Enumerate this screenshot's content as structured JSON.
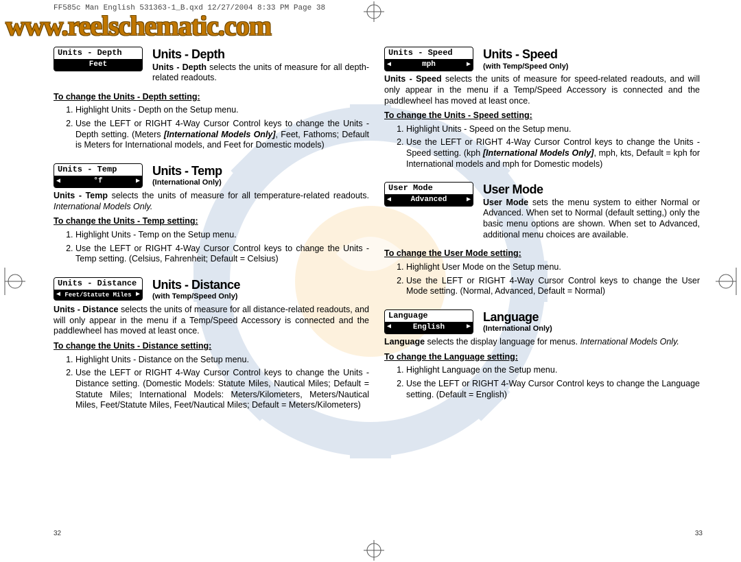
{
  "header_line": "FF585c Man English 531363-1_B.qxd  12/27/2004  8:33 PM  Page 38",
  "watermark_url": "www.reelschematic.com",
  "page_num_left": "32",
  "page_num_right": "33",
  "watermark_colors": {
    "gear_outer": "#2a5d9e",
    "gear_center": "#f5a623",
    "accent": "#e8e8e8"
  },
  "sections_left": [
    {
      "widget": {
        "title": "Units - Depth",
        "value": "Feet",
        "arrows": false
      },
      "title": "Units - Depth",
      "subtitle": "",
      "intro_html": "<b>Units - Depth</b> selects the units of measure for all depth-related readouts.",
      "intro_inline": true,
      "change_heading": "To change the Units - Depth setting:",
      "steps": [
        "Highlight Units - Depth on the Setup menu.",
        "Use the LEFT or RIGHT 4-Way Cursor Control keys to change the Units - Depth setting. (Meters <span class='boldi'>[International Models Only]</span>, Feet, Fathoms; Default is Meters for International models, and Feet for Domestic models)"
      ]
    },
    {
      "widget": {
        "title": "Units - Temp",
        "value": "°f",
        "arrows": true
      },
      "title": "Units - Temp",
      "subtitle": "(International Only)",
      "intro_html": "<b>Units - Temp</b> selects the units of measure for all temperature-related readouts. <i>International Models Only.</i>",
      "intro_inline": false,
      "change_heading": "To change the Units - Temp setting:",
      "steps": [
        "Highlight Units - Temp on the Setup menu.",
        "Use the LEFT or RIGHT 4-Way Cursor Control keys to change the Units - Temp setting. (Celsius, Fahrenheit; Default = Celsius)"
      ]
    },
    {
      "widget": {
        "title": "Units - Distance",
        "value": "Feet/Statute Miles",
        "arrows": true,
        "small": true
      },
      "title": "Units - Distance",
      "subtitle": "(with Temp/Speed Only)",
      "intro_html": "<b>Units - Distance</b> selects the units of measure for all distance-related readouts, and will only appear in the menu if a Temp/Speed Accessory is connected and the paddlewheel has moved at least once.",
      "intro_inline": false,
      "change_heading": "To change the Units - Distance setting:",
      "steps": [
        "Highlight Units - Distance on the Setup menu.",
        "Use the LEFT or RIGHT 4-Way Cursor Control keys to change the Units - Distance setting. (Domestic Models: Statute Miles, Nautical Miles; Default = Statute Miles; International Models: Meters/Kilometers, Meters/Nautical Miles, Feet/Statute Miles, Feet/Nautical Miles; Default = Meters/Kilometers)"
      ]
    }
  ],
  "sections_right": [
    {
      "widget": {
        "title": "Units - Speed",
        "value": "mph",
        "arrows": true
      },
      "title": "Units - Speed",
      "subtitle": "(with Temp/Speed Only)",
      "intro_html": "<b>Units - Speed</b> selects the units of measure for speed-related readouts, and will only appear in the menu if a Temp/Speed Accessory is connected and the paddlewheel has moved at least once.",
      "intro_inline": false,
      "change_heading": "To change the Units - Speed setting:",
      "steps": [
        "Highlight Units - Speed on the Setup menu.",
        "Use the LEFT or RIGHT 4-Way Cursor Control keys to change the Units - Speed setting. (kph <span class='boldi'>[International Models Only]</span>, mph, kts, Default = kph for International models and mph for Domestic models)"
      ]
    },
    {
      "widget": {
        "title": "User Mode",
        "value": "Advanced",
        "arrows": true
      },
      "title": "User Mode",
      "subtitle": "",
      "intro_html": "<b>User Mode</b> sets the menu system to either Normal or Advanced. When set to Normal (default setting,) only the basic menu options are shown. When set to Advanced, additional menu choices are available.",
      "intro_inline": true,
      "change_heading": "To change the User Mode setting:",
      "steps": [
        "Highlight User Mode on the Setup menu.",
        "Use the LEFT or RIGHT 4-Way Cursor Control keys to change the User Mode setting. (Normal, Advanced, Default = Normal)"
      ]
    },
    {
      "widget": {
        "title": "Language",
        "value": "English",
        "arrows": true
      },
      "title": "Language",
      "subtitle": "(International Only)",
      "intro_html": "<b>Language</b> selects the display language for menus. <i>International Models Only.</i>",
      "intro_inline": false,
      "change_heading": "To change the Language setting:",
      "steps": [
        "Highlight Language on the Setup menu.",
        "Use the LEFT or RIGHT 4-Way Cursor Control keys to change the Language setting. (Default = English)"
      ]
    }
  ]
}
